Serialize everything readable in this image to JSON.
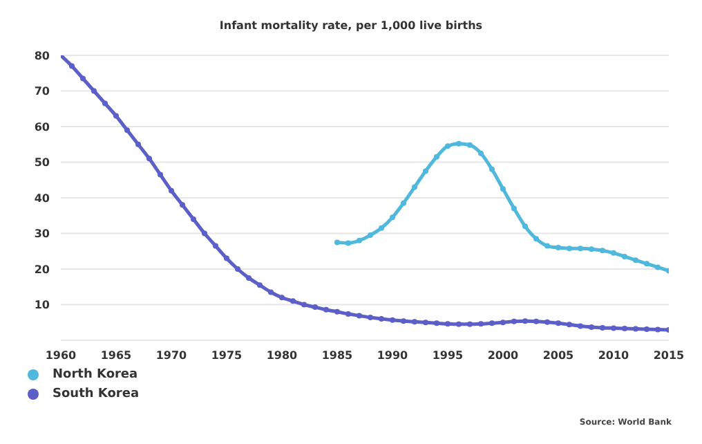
{
  "chart_data": {
    "type": "line",
    "title": "Infant mortality rate, per 1,000 live births",
    "xlim": [
      1960,
      2015
    ],
    "xticks": [
      1960,
      1965,
      1970,
      1975,
      1980,
      1985,
      1990,
      1995,
      2000,
      2005,
      2010,
      2015
    ],
    "ylim": [
      0,
      80
    ],
    "yticks": [
      10,
      20,
      30,
      40,
      50,
      60,
      70,
      80
    ],
    "grid": "y",
    "legend": "bottom left",
    "marker": "circle",
    "line_style": "solid",
    "annotations": [
      "Source: World Bank"
    ],
    "series": [
      {
        "name": "North Korea",
        "color": "#4fb8dc",
        "x": [
          1985,
          1986,
          1987,
          1988,
          1989,
          1990,
          1991,
          1992,
          1993,
          1994,
          1995,
          1996,
          1997,
          1998,
          1999,
          2000,
          2001,
          2002,
          2003,
          2004,
          2005,
          2006,
          2007,
          2008,
          2009,
          2010,
          2011,
          2012,
          2013,
          2014,
          2015
        ],
        "values": [
          27.5,
          27.3,
          28,
          29.5,
          31.5,
          34.5,
          38.5,
          43,
          47.5,
          51.5,
          54.5,
          55.2,
          54.8,
          52.5,
          48,
          42.5,
          37,
          32,
          28.5,
          26.5,
          26,
          25.8,
          25.8,
          25.6,
          25.2,
          24.5,
          23.5,
          22.5,
          21.5,
          20.5,
          19.5
        ]
      },
      {
        "name": "South Korea",
        "color": "#5b5fc7",
        "x": [
          1960,
          1961,
          1962,
          1963,
          1964,
          1965,
          1966,
          1967,
          1968,
          1969,
          1970,
          1971,
          1972,
          1973,
          1974,
          1975,
          1976,
          1977,
          1978,
          1979,
          1980,
          1981,
          1982,
          1983,
          1984,
          1985,
          1986,
          1987,
          1988,
          1989,
          1990,
          1991,
          1992,
          1993,
          1994,
          1995,
          1996,
          1997,
          1998,
          1999,
          2000,
          2001,
          2002,
          2003,
          2004,
          2005,
          2006,
          2007,
          2008,
          2009,
          2010,
          2011,
          2012,
          2013,
          2014,
          2015
        ],
        "values": [
          80,
          77,
          73.5,
          70,
          66.5,
          63,
          59,
          55,
          51,
          46.5,
          42,
          38,
          34,
          30,
          26.5,
          23,
          20,
          17.5,
          15.5,
          13.5,
          12,
          11,
          10,
          9.3,
          8.6,
          8,
          7.4,
          6.9,
          6.4,
          6,
          5.7,
          5.4,
          5.2,
          5,
          4.8,
          4.6,
          4.5,
          4.5,
          4.6,
          4.8,
          5,
          5.3,
          5.4,
          5.3,
          5.1,
          4.8,
          4.4,
          4,
          3.7,
          3.5,
          3.4,
          3.3,
          3.2,
          3.1,
          3,
          2.9
        ]
      }
    ]
  }
}
